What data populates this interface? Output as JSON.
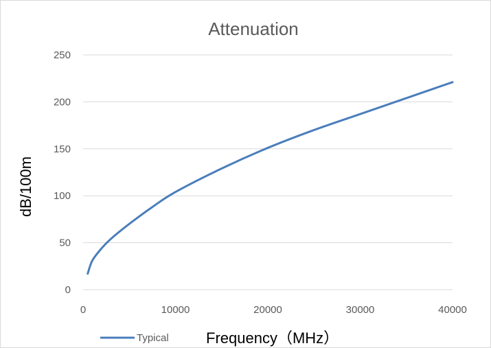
{
  "chart_data": {
    "type": "line",
    "title": "Attenuation",
    "xlabel": "Frequency（MHz）",
    "ylabel": "dB/100m",
    "xlim": [
      0,
      40000
    ],
    "ylim": [
      0,
      250
    ],
    "x_ticks": [
      "0",
      "10000",
      "20000",
      "30000",
      "40000"
    ],
    "y_ticks": [
      "0",
      "50",
      "100",
      "150",
      "200",
      "250"
    ],
    "grid": "horizontal",
    "legend_position": "bottom-left",
    "series": [
      {
        "name": "Typical",
        "color": "#4a7ebb",
        "x": [
          500,
          1000,
          2000,
          3000,
          5000,
          7500,
          10000,
          15000,
          20000,
          25000,
          30000,
          35000,
          40000
        ],
        "y": [
          17,
          31,
          44,
          54,
          70,
          88,
          104,
          129,
          151,
          170,
          187,
          204,
          221
        ]
      }
    ]
  }
}
